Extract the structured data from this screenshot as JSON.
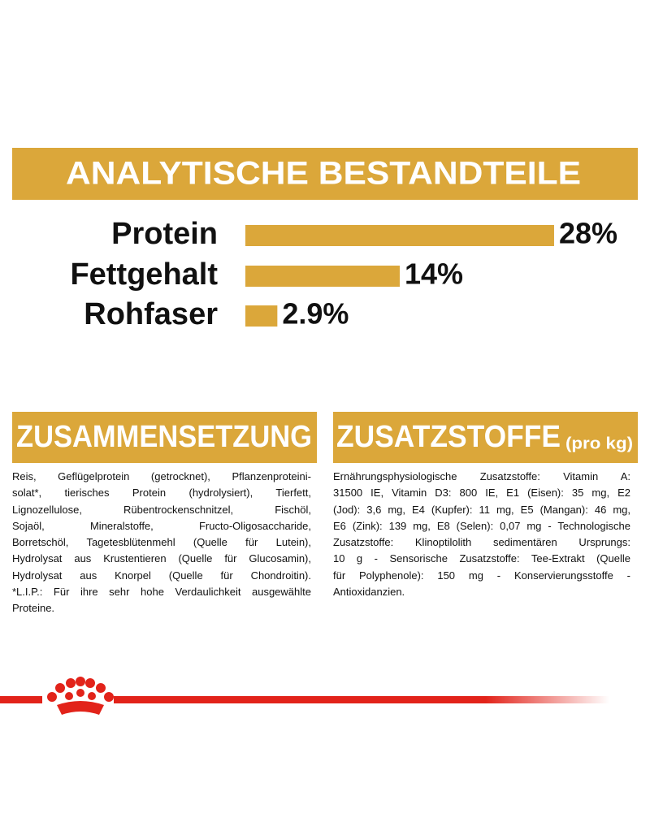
{
  "chart_data": {
    "type": "bar",
    "title": "ANALYTISCHE BESTANDTEILE",
    "categories": [
      "Protein",
      "Fettgehalt",
      "Rohfaser"
    ],
    "values": [
      28,
      14,
      2.9
    ],
    "value_labels": [
      "28%",
      "14%",
      "2.9%"
    ],
    "color": "#dba73a"
  },
  "composition": {
    "title": "ZUSAMMENSETZUNG",
    "lines": [
      "Reis, Geflügelprotein (getrocknet), Pflanzenproteini-",
      "solat*, tierisches Protein (hydrolysiert), Tierfett,",
      "Lignozellulose, Rübentrockenschnitzel, Fischöl,",
      "Sojaöl, Mineralstoffe, Fructo-Oligosaccharide,",
      "Borretschöl, Tagetesblütenmehl (Quelle für Lutein),",
      "Hydrolysat aus Krustentieren (Quelle für Glucosamin),",
      "Hydrolysat aus Knorpel (Quelle für Chondroitin).",
      "*L.I.P.: Für ihre sehr hohe Verdaulichkeit ausgewählte",
      "Proteine."
    ]
  },
  "additives": {
    "title": "ZUSATZSTOFFE",
    "unit": "(pro kg)",
    "lines": [
      "Ernährungsphysiologische Zusatzstoffe: Vitamin A:",
      "31500 IE, Vitamin D3: 800 IE, E1 (Eisen): 35 mg, E2",
      "(Jod): 3,6 mg, E4 (Kupfer): 11 mg, E5 (Mangan): 46 mg,",
      "E6 (Zink): 139 mg, E8 (Selen): 0,07 mg - Technologische",
      "Zusatzstoffe: Klinoptilolith sedimentären Ursprungs:",
      "10 g - Sensorische Zusatzstoffe: Tee-Extrakt (Quelle",
      "für Polyphenole): 150 mg - Konservierungsstoffe -",
      "Antioxidanzien."
    ]
  }
}
